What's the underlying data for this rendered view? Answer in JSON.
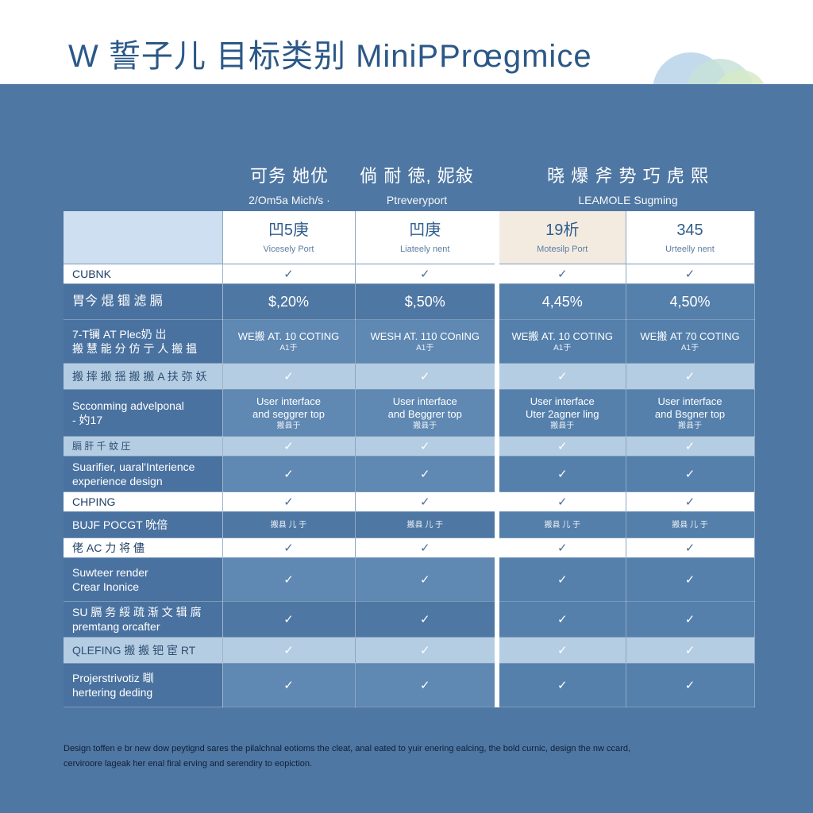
{
  "header": {
    "title": "W 誓子儿 目标类别 MiniPPrœgmice"
  },
  "column_groups": [
    {
      "title": "可务 她优",
      "subtitle": "2/Om5a Mich/s ·"
    },
    {
      "title": "倘 耐 徳, 妮敍",
      "subtitle": "Ptreveryport"
    },
    {
      "title": "晓 爆 斧 势 巧 虎 熙",
      "subtitle": "LEAMOLE Sugming"
    }
  ],
  "plans": [
    {
      "name": "凹5庚",
      "note": "Vicesely Port"
    },
    {
      "name": "凹庚",
      "note": "Liateely nent"
    },
    {
      "name": "19析",
      "note": "Motesilp Port"
    },
    {
      "name": "345",
      "note": "Urteelly nent"
    }
  ],
  "rows": {
    "r1": {
      "label": "CUBNK",
      "values": [
        "✓",
        "✓",
        "✓",
        "✓"
      ]
    },
    "r2": {
      "label": "胃今 焜 锢 滤 膈",
      "values": [
        "$,20%",
        "$,50%",
        "4,45%",
        "4,50%"
      ]
    },
    "r3": {
      "label": "7-T镧 AT Plec奶 岀",
      "label2": "搬 慧 能 分 仿 亍 人 搬 揾",
      "values": [
        "WE搬 AT. 10 COTING",
        "WESH AT. 110 COnING",
        "WE搬 AT. 10 COTING",
        "WE搬 AT 70 COTING"
      ],
      "values2": [
        "A1于",
        "A1于",
        "A1于",
        "A1于"
      ]
    },
    "r4": {
      "label": "搬 摔 搬 揺 搬 搬 A 扶 弥 妖",
      "values": [
        "✓",
        "✓",
        "✓",
        "✓"
      ]
    },
    "r5": {
      "label": "Scconming advelponal",
      "label2": "- 妁17",
      "values": [
        "User interface",
        "User interface",
        "User interface",
        "User interface"
      ],
      "values2": [
        "and seggrer top",
        "and Beggrer top",
        "Uter 2agner ling",
        "and Bsgner top"
      ],
      "values3": [
        "搬县于",
        "搬县于",
        "搬县于",
        "搬县于"
      ]
    },
    "r6": {
      "label": "膈 肝 千 蚊 圧",
      "values": [
        "✓",
        "✓",
        "✓",
        "✓"
      ]
    },
    "r7": {
      "label": "Suarifier, uaral'Interience",
      "label2": "experience design",
      "values": [
        "✓",
        "✓",
        "✓",
        "✓"
      ]
    },
    "r8": {
      "label": "CHPING",
      "values": [
        "✓",
        "✓",
        "✓",
        "✓"
      ]
    },
    "r9": {
      "label": "BUJF POCGT 吮倍",
      "values": [
        "搬县 儿 于",
        "搬县 儿 于",
        "搬县 儿 于",
        "搬县 儿 于"
      ]
    },
    "r10": {
      "label": "佬 AC 力 将 儘",
      "values": [
        "✓",
        "✓",
        "✓",
        "✓"
      ]
    },
    "r11": {
      "label": "Suwteer render",
      "label2": "Crear Inonice",
      "values": [
        "✓",
        "✓",
        "✓",
        "✓"
      ]
    },
    "r12": {
      "label": "SU 膈 务 綏 疏 渐 文 辑 腐",
      "label2": "premtang orcafter",
      "values": [
        "✓",
        "✓",
        "✓",
        "✓"
      ]
    },
    "r13": {
      "label": "QLEFING 搬 搬 钯 宦 RT",
      "values": [
        "✓",
        "✓",
        "✓",
        "✓"
      ]
    },
    "r14": {
      "label": "Projerstrivotiz 瞓",
      "label2": "hertering deding",
      "values": [
        "✓",
        "✓",
        "✓",
        "✓"
      ]
    }
  },
  "footnote": {
    "line1": "Design toffen e br new dow peytignd sares the pilalchnal eotioms the cleat, anal eated to yuir enering ealcing, the bold curnic, design the nw ccard,",
    "line2": "cerviroore lageak her enal firal erving and serendiry to eopiction."
  }
}
